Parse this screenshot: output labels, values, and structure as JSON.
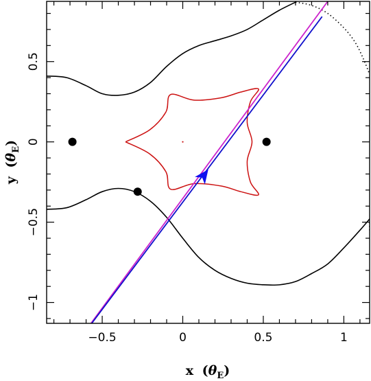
{
  "chart_data": {
    "type": "line",
    "x_axis": {
      "label_main": "x",
      "label_symbol": "θ",
      "label_sub": "E",
      "range": [
        -0.845,
        1.16
      ],
      "major_ticks": [
        -0.5,
        0,
        0.5,
        1
      ],
      "tick_labels": [
        "−0.5",
        "0",
        "0.5",
        "1"
      ],
      "minor_step": 0.1
    },
    "y_axis": {
      "label_main": "y",
      "label_symbol": "θ",
      "label_sub": "E",
      "range": [
        -1.13,
        0.875
      ],
      "major_ticks": [
        -1,
        -0.5,
        0,
        0.5
      ],
      "tick_labels": [
        "−1",
        "−0.5",
        "0",
        "0.5"
      ],
      "minor_step": 0.1
    },
    "grid": false,
    "legend": "none",
    "caustic": {
      "color": "#cc1111",
      "cusps": [
        [
          -0.355,
          0.0
        ],
        [
          -0.075,
          0.295
        ],
        [
          0.47,
          0.33
        ],
        [
          0.47,
          -0.33
        ],
        [
          -0.075,
          -0.295
        ],
        [
          0.43,
          0.0
        ],
        [
          0.43,
          0.0
        ]
      ],
      "outline": [
        [
          -0.355,
          0.0
        ],
        [
          -0.205,
          0.075
        ],
        [
          -0.105,
          0.185
        ],
        [
          -0.075,
          0.295
        ],
        [
          0.07,
          0.26
        ],
        [
          0.24,
          0.275
        ],
        [
          0.36,
          0.31
        ],
        [
          0.47,
          0.33
        ],
        [
          0.42,
          0.25
        ],
        [
          0.4,
          0.12
        ],
        [
          0.43,
          0.0
        ],
        [
          0.4,
          -0.12
        ],
        [
          0.42,
          -0.25
        ],
        [
          0.47,
          -0.33
        ],
        [
          0.36,
          -0.31
        ],
        [
          0.24,
          -0.275
        ],
        [
          0.07,
          -0.26
        ],
        [
          -0.075,
          -0.295
        ],
        [
          -0.105,
          -0.185
        ],
        [
          -0.205,
          -0.075
        ],
        [
          -0.355,
          0.0
        ]
      ],
      "center_dot": [
        0.0,
        0.0
      ]
    },
    "critical_curve_upper": {
      "color": "#000000",
      "points": [
        [
          -0.845,
          0.41
        ],
        [
          -0.72,
          0.4
        ],
        [
          -0.6,
          0.35
        ],
        [
          -0.5,
          0.3
        ],
        [
          -0.4,
          0.29
        ],
        [
          -0.3,
          0.31
        ],
        [
          -0.2,
          0.37
        ],
        [
          -0.1,
          0.47
        ],
        [
          0.0,
          0.55
        ],
        [
          0.1,
          0.6
        ],
        [
          0.2,
          0.63
        ],
        [
          0.3,
          0.66
        ],
        [
          0.4,
          0.7
        ],
        [
          0.5,
          0.76
        ],
        [
          0.6,
          0.82
        ],
        [
          0.7,
          0.87
        ]
      ]
    },
    "critical_curve_lower": {
      "color": "#000000",
      "points": [
        [
          -0.845,
          -0.42
        ],
        [
          -0.72,
          -0.41
        ],
        [
          -0.6,
          -0.36
        ],
        [
          -0.5,
          -0.31
        ],
        [
          -0.4,
          -0.29
        ],
        [
          -0.3,
          -0.31
        ],
        [
          -0.2,
          -0.37
        ],
        [
          -0.1,
          -0.47
        ],
        [
          0.0,
          -0.6
        ],
        [
          0.1,
          -0.72
        ],
        [
          0.2,
          -0.8
        ],
        [
          0.3,
          -0.85
        ],
        [
          0.4,
          -0.88
        ],
        [
          0.5,
          -0.89
        ],
        [
          0.6,
          -0.89
        ],
        [
          0.7,
          -0.87
        ],
        [
          0.8,
          -0.82
        ],
        [
          0.9,
          -0.76
        ],
        [
          1.0,
          -0.66
        ],
        [
          1.1,
          -0.55
        ],
        [
          1.16,
          -0.48
        ]
      ]
    },
    "critical_curve_dotted": {
      "color": "#000000",
      "points": [
        [
          0.7,
          0.87
        ],
        [
          0.8,
          0.85
        ],
        [
          0.9,
          0.8
        ],
        [
          1.0,
          0.71
        ],
        [
          1.07,
          0.62
        ],
        [
          1.12,
          0.52
        ],
        [
          1.16,
          0.42
        ]
      ]
    },
    "critical_curve_dotted_lower": {
      "color": "#000000",
      "points": [
        [
          1.16,
          -0.48
        ],
        [
          1.16,
          -0.55
        ]
      ]
    },
    "lens_markers": {
      "color": "#000000",
      "points": [
        [
          -0.685,
          0.0
        ],
        [
          0.52,
          0.0
        ],
        [
          -0.28,
          -0.31
        ]
      ]
    },
    "trajectory_magenta": {
      "color": "#cc22cc",
      "points": [
        [
          -0.57,
          -1.13
        ],
        [
          0.9,
          0.875
        ]
      ]
    },
    "trajectory_blue": {
      "color": "#1010cc",
      "points": [
        [
          -0.565,
          -1.13
        ],
        [
          0.865,
          0.78
        ]
      ]
    },
    "trajectory_arrow": {
      "color": "#1010ee",
      "at": [
        0.13,
        -0.21
      ],
      "direction": [
        0.865,
        0.78
      ]
    }
  }
}
